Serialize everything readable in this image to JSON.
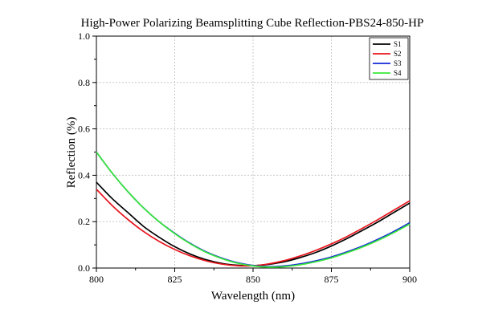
{
  "chart_data": {
    "type": "line",
    "title": "High-Power Polarizing Beamsplitting Cube Reflection-PBS24-850-HP",
    "xlabel": "Wavelength (nm)",
    "ylabel": "Reflection (%)",
    "xlim": [
      800,
      900
    ],
    "ylim": [
      0,
      1.0
    ],
    "x_ticks": [
      "800",
      "825",
      "850",
      "875",
      "900"
    ],
    "y_ticks": [
      "0.0",
      "0.2",
      "0.4",
      "0.6",
      "0.8",
      "1.0"
    ],
    "grid": true,
    "legend_position": "top-right",
    "x": [
      800,
      805,
      810,
      815,
      820,
      825,
      830,
      835,
      840,
      845,
      850,
      855,
      860,
      865,
      870,
      875,
      880,
      885,
      890,
      895,
      900
    ],
    "series": [
      {
        "name": "S1",
        "color": "#000000",
        "values": [
          0.37,
          0.3,
          0.24,
          0.18,
          0.133,
          0.092,
          0.06,
          0.036,
          0.02,
          0.012,
          0.01,
          0.016,
          0.027,
          0.045,
          0.067,
          0.095,
          0.127,
          0.163,
          0.2,
          0.24,
          0.28
        ]
      },
      {
        "name": "S2",
        "color": "#e8141c",
        "values": [
          0.34,
          0.27,
          0.21,
          0.158,
          0.115,
          0.08,
          0.052,
          0.031,
          0.017,
          0.01,
          0.01,
          0.018,
          0.032,
          0.052,
          0.076,
          0.104,
          0.136,
          0.172,
          0.21,
          0.25,
          0.29
        ]
      },
      {
        "name": "S3",
        "color": "#1428d8",
        "values": [
          0.5,
          0.41,
          0.33,
          0.26,
          0.2,
          0.15,
          0.106,
          0.07,
          0.043,
          0.023,
          0.011,
          0.006,
          0.009,
          0.018,
          0.031,
          0.048,
          0.07,
          0.095,
          0.125,
          0.158,
          0.195
        ]
      },
      {
        "name": "S4",
        "color": "#3ae83a",
        "values": [
          0.5,
          0.41,
          0.33,
          0.26,
          0.2,
          0.148,
          0.104,
          0.068,
          0.041,
          0.021,
          0.009,
          0.004,
          0.006,
          0.014,
          0.027,
          0.044,
          0.066,
          0.091,
          0.12,
          0.153,
          0.19
        ]
      }
    ]
  }
}
